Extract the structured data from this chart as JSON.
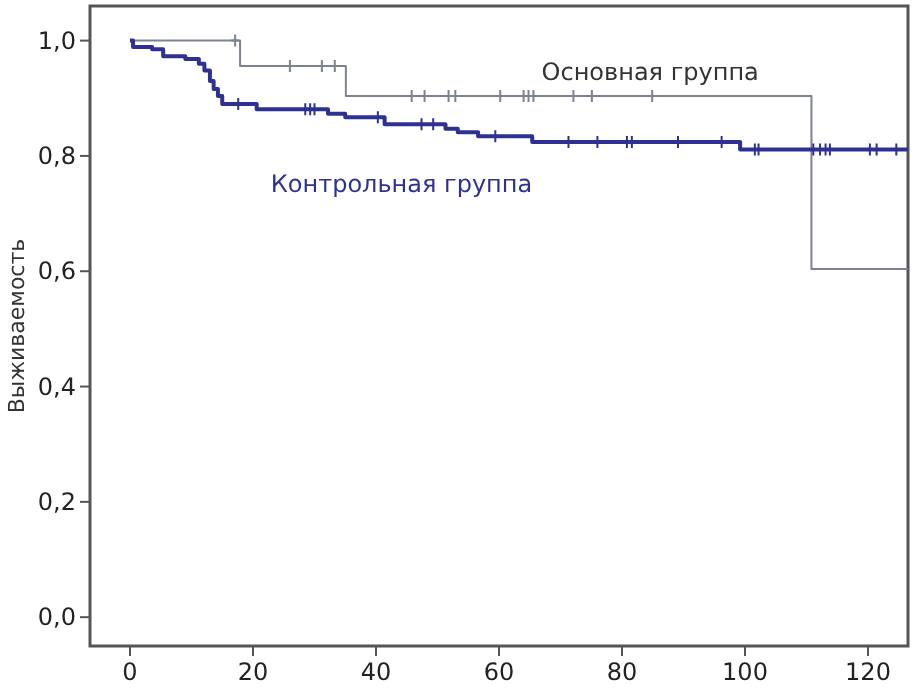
{
  "chart_data": {
    "type": "step",
    "ylabel": "Выживаемость",
    "xlim": [
      -6.5,
      126.5
    ],
    "ylim": [
      -0.05,
      1.06
    ],
    "xticks": [
      0,
      20,
      40,
      60,
      80,
      100,
      120
    ],
    "yticks": [
      {
        "value": 0,
        "label": "0,0"
      },
      {
        "value": 0.2,
        "label": "0,2"
      },
      {
        "value": 0.4,
        "label": "0,4"
      },
      {
        "value": 0.6,
        "label": "0,6"
      },
      {
        "value": 0.8,
        "label": "0,8"
      },
      {
        "value": 1,
        "label": "1,0"
      }
    ],
    "grid": false,
    "legend": false,
    "line_style": "solid",
    "series": [
      {
        "name": "Основная группа",
        "color": "#7d838f",
        "x": [
          0,
          17.9,
          35.1,
          110.8,
          126.5
        ],
        "values": [
          1,
          0.956,
          0.904,
          0.604,
          0.604
        ]
      },
      {
        "name": "Контрольная группа",
        "color": "#2e3192",
        "x": [
          0,
          0.5,
          3.6,
          5.4,
          9.0,
          11.2,
          12.1,
          13.0,
          13.6,
          14.3,
          15.0,
          20.6,
          32.2,
          35.0,
          41.4,
          51.3,
          53.3,
          56.6,
          65.4,
          99.2,
          126.5
        ],
        "values": [
          1,
          0.989,
          0.985,
          0.973,
          0.968,
          0.96,
          0.948,
          0.93,
          0.916,
          0.904,
          0.89,
          0.881,
          0.873,
          0.867,
          0.855,
          0.847,
          0.841,
          0.834,
          0.824,
          0.811,
          0.811
        ]
      },
      {
        "type": "scatter",
        "marker": "cross",
        "color": "#7d838f",
        "x": [
          17.1,
          26.0,
          31.2,
          33.3,
          45.8,
          47.9,
          51.8,
          52.9,
          60.2,
          64.0,
          64.8,
          65.6,
          72.1,
          75.1,
          84.9
        ],
        "values": [
          1,
          0.956,
          0.956,
          0.956,
          0.904,
          0.904,
          0.904,
          0.904,
          0.904,
          0.904,
          0.904,
          0.904,
          0.904,
          0.904,
          0.904
        ]
      },
      {
        "type": "scatter",
        "marker": "cross",
        "color": "#2e3192",
        "x": [
          17.6,
          28.5,
          29.3,
          30.0,
          40.3,
          47.4,
          49.3,
          59.4,
          71.3,
          76.0,
          80.8,
          81.6,
          89.1,
          96.2,
          101.6,
          102.2,
          111.1,
          112.2,
          113.1,
          113.8,
          120.3,
          121.4,
          124.6
        ],
        "values": [
          0.89,
          0.881,
          0.881,
          0.881,
          0.867,
          0.855,
          0.855,
          0.834,
          0.824,
          0.824,
          0.824,
          0.824,
          0.824,
          0.824,
          0.811,
          0.811,
          0.811,
          0.811,
          0.811,
          0.811,
          0.811,
          0.811,
          0.811
        ]
      }
    ]
  }
}
